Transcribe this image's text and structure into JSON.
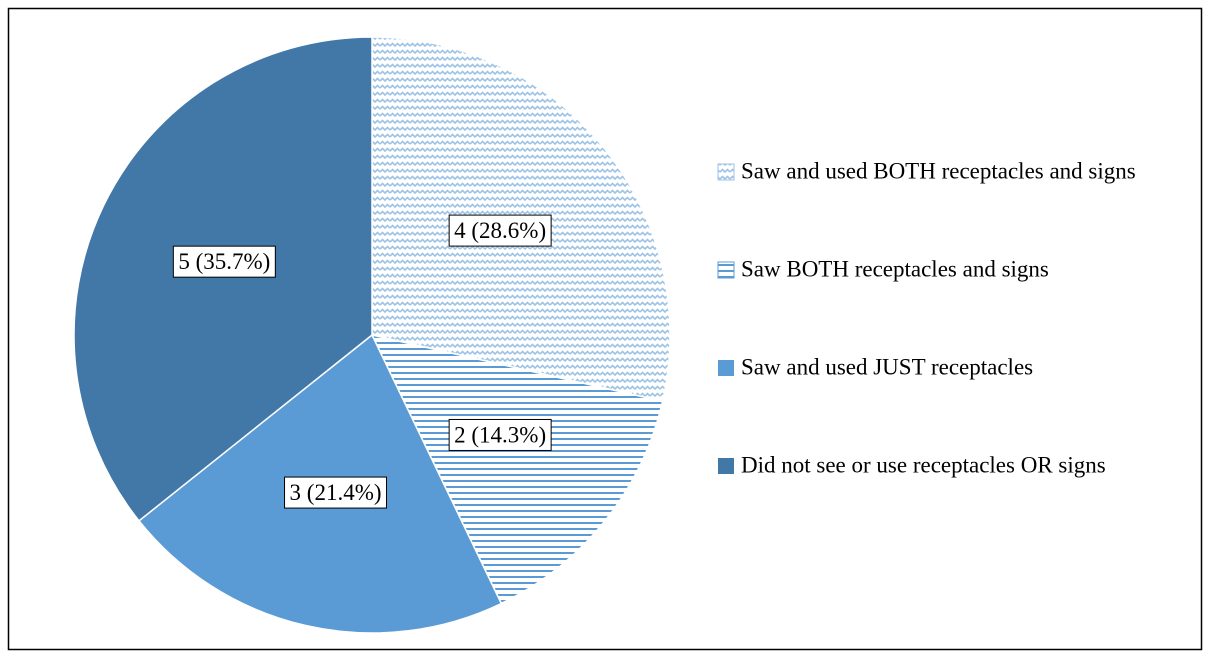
{
  "chart_data": {
    "type": "pie",
    "categories": [
      "Saw and used BOTH receptacles and signs",
      "Saw BOTH receptacles and signs",
      "Saw and used JUST receptacles",
      "Did not see or use receptacles OR signs"
    ],
    "values": [
      4,
      2,
      3,
      5
    ],
    "value_labels": [
      "4 (28.6%)",
      "2 (14.3%)",
      "3 (21.4%)",
      "5 (35.7%)"
    ],
    "colors": [
      "#9dc3e6",
      "#5b9bd5",
      "#5b9bd5",
      "#4178a8"
    ],
    "patterns": [
      "zigzag",
      "horizontal",
      "solid",
      "solid"
    ],
    "legend": "right"
  }
}
